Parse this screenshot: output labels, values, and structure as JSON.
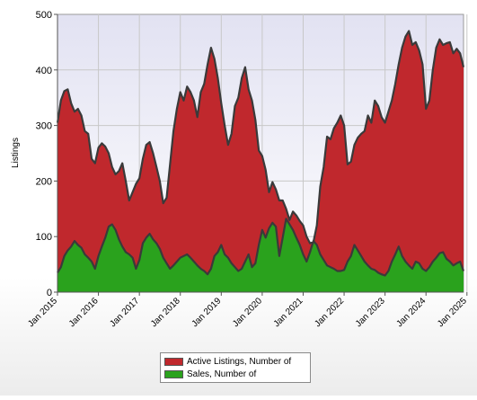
{
  "chart_data": {
    "type": "area",
    "title": "",
    "xlabel": "",
    "ylabel": "Listings",
    "ylim": [
      0,
      500
    ],
    "yticks": [
      "0",
      "100",
      "200",
      "300",
      "400",
      "500"
    ],
    "xticks": [
      "Jan 2015",
      "Jan 2016",
      "Jan 2017",
      "Jan 2018",
      "Jan 2019",
      "Jan 2020",
      "Jan 2021",
      "Jan 2022",
      "Jan 2023",
      "Jan 2024",
      "Jan 2025"
    ],
    "grid": true,
    "legend": "bottom",
    "x_start": "2015-01",
    "x_end": "2025-12",
    "series": [
      {
        "name": "Active Listings, Number of",
        "color": "#c0282d",
        "values": [
          305,
          345,
          362,
          365,
          340,
          325,
          330,
          318,
          290,
          285,
          240,
          232,
          260,
          268,
          262,
          250,
          225,
          212,
          218,
          232,
          200,
          165,
          180,
          195,
          205,
          240,
          265,
          270,
          250,
          225,
          200,
          160,
          170,
          230,
          290,
          330,
          360,
          345,
          370,
          360,
          345,
          315,
          360,
          375,
          410,
          440,
          420,
          385,
          340,
          300,
          265,
          285,
          335,
          350,
          385,
          405,
          365,
          345,
          310,
          255,
          245,
          220,
          180,
          198,
          185,
          165,
          165,
          150,
          130,
          145,
          138,
          128,
          120,
          100,
          88,
          90,
          120,
          190,
          225,
          280,
          275,
          295,
          305,
          318,
          300,
          230,
          235,
          265,
          278,
          285,
          290,
          318,
          305,
          345,
          335,
          315,
          305,
          325,
          345,
          375,
          410,
          440,
          460,
          470,
          445,
          450,
          435,
          410,
          330,
          345,
          400,
          440,
          455,
          445,
          448,
          450,
          430,
          438,
          430,
          405
        ]
      },
      {
        "name": "Sales, Number of",
        "color": "#2aa21d",
        "values": [
          35,
          45,
          65,
          75,
          82,
          92,
          85,
          80,
          68,
          62,
          55,
          42,
          65,
          82,
          98,
          118,
          122,
          112,
          95,
          82,
          72,
          68,
          62,
          42,
          58,
          88,
          98,
          105,
          95,
          88,
          78,
          62,
          52,
          42,
          48,
          55,
          62,
          65,
          68,
          62,
          55,
          48,
          42,
          38,
          32,
          42,
          65,
          72,
          85,
          68,
          62,
          52,
          45,
          38,
          42,
          55,
          68,
          45,
          52,
          85,
          112,
          98,
          115,
          125,
          118,
          65,
          98,
          132,
          122,
          112,
          98,
          85,
          68,
          55,
          72,
          92,
          85,
          68,
          58,
          48,
          45,
          42,
          38,
          38,
          40,
          55,
          65,
          85,
          75,
          65,
          55,
          48,
          42,
          40,
          35,
          32,
          30,
          38,
          55,
          68,
          82,
          65,
          55,
          48,
          42,
          55,
          52,
          42,
          38,
          45,
          55,
          62,
          70,
          72,
          60,
          55,
          48,
          52,
          55,
          38
        ]
      }
    ]
  }
}
